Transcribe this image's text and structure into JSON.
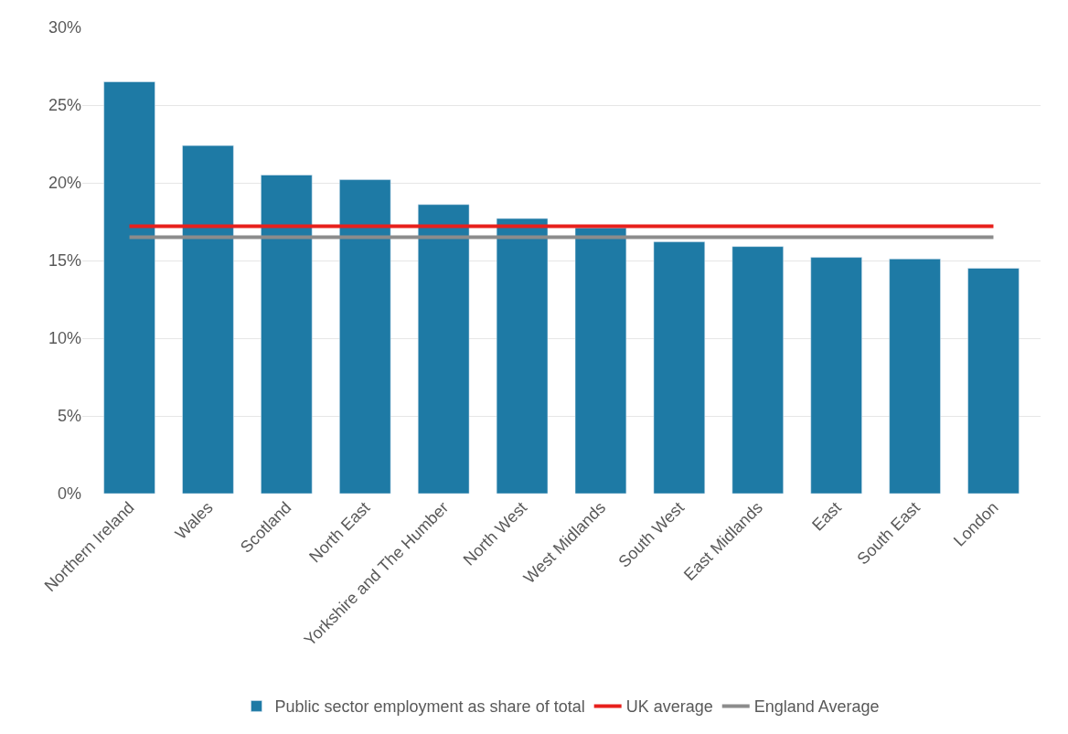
{
  "chart_data": {
    "type": "bar",
    "categories": [
      "Northern Ireland",
      "Wales",
      "Scotland",
      "North East",
      "Yorkshire and The Humber",
      "North West",
      "West Midlands",
      "South West",
      "East Midlands",
      "East",
      "South East",
      "London"
    ],
    "series": [
      {
        "name": "Public sector employment as share of total",
        "color": "#1e7aa5",
        "values": [
          26.5,
          22.4,
          20.5,
          20.2,
          18.6,
          17.7,
          17.1,
          16.2,
          15.9,
          15.2,
          15.1,
          14.5
        ]
      },
      {
        "name": "UK average",
        "type": "line",
        "color": "#e8201c",
        "values": [
          17.2,
          17.2,
          17.2,
          17.2,
          17.2,
          17.2,
          17.2,
          17.2,
          17.2,
          17.2,
          17.2,
          17.2
        ]
      },
      {
        "name": "England Average",
        "type": "line",
        "color": "#8c8c8c",
        "values": [
          16.5,
          16.5,
          16.5,
          16.5,
          16.5,
          16.5,
          16.5,
          16.5,
          16.5,
          16.5,
          16.5,
          16.5
        ]
      }
    ],
    "ylim": [
      0,
      30
    ],
    "yticks": [
      {
        "value": 0,
        "label": "0%"
      },
      {
        "value": 5,
        "label": "5%"
      },
      {
        "value": 10,
        "label": "10%"
      },
      {
        "value": 15,
        "label": "15%"
      },
      {
        "value": 20,
        "label": "20%"
      },
      {
        "value": 25,
        "label": "25%"
      },
      {
        "value": 30,
        "label": "30%"
      }
    ],
    "grid": "y",
    "legend": "bottom"
  }
}
